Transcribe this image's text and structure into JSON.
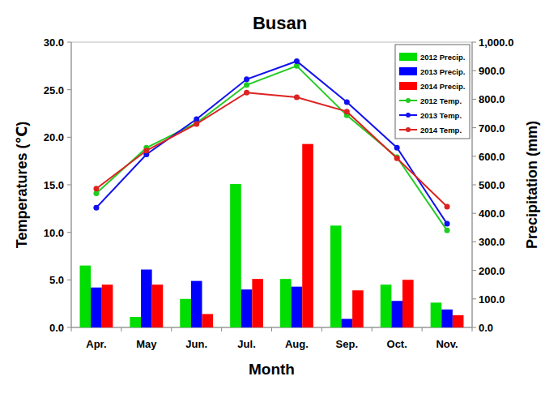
{
  "chart_data": {
    "type": "bar",
    "title": "Busan",
    "x_label": "Month",
    "y_label": "Temperatures (℃)",
    "y2_label": "Precipitation (mm)",
    "categories": [
      "Apr.",
      "May",
      "Jun.",
      "Jul.",
      "Aug.",
      "Sep.",
      "Oct.",
      "Nov."
    ],
    "series": [
      {
        "name": "2012 Precip.",
        "type": "bar",
        "axis": "y2",
        "color": "#00dd00",
        "values": [
          217,
          37,
          100,
          503,
          170,
          357,
          150,
          87
        ]
      },
      {
        "name": "2013 Precip.",
        "type": "bar",
        "axis": "y2",
        "color": "#0000ff",
        "values": [
          140,
          203,
          163,
          133,
          143,
          30,
          93,
          63
        ]
      },
      {
        "name": "2014 Precip.",
        "type": "bar",
        "axis": "y2",
        "color": "#ff0000",
        "values": [
          150,
          150,
          47,
          170,
          643,
          130,
          167,
          43
        ]
      },
      {
        "name": "2012 Temp.",
        "type": "line",
        "marker": "circle",
        "color": "#22cc22",
        "values": [
          14.1,
          18.9,
          21.5,
          25.5,
          27.5,
          22.3,
          17.9,
          10.2
        ]
      },
      {
        "name": "2013 Temp.",
        "type": "line",
        "marker": "circle",
        "color": "#1111ee",
        "values": [
          12.6,
          18.2,
          21.9,
          26.1,
          28.0,
          23.7,
          18.9,
          10.9
        ]
      },
      {
        "name": "2014 Temp.",
        "type": "line",
        "marker": "circle",
        "color": "#dd2222",
        "values": [
          14.6,
          18.6,
          21.4,
          24.7,
          24.2,
          22.7,
          17.8,
          12.7
        ]
      }
    ],
    "ylim": [
      0,
      30
    ],
    "yticks": [
      {
        "value": 0,
        "label": "0.0"
      },
      {
        "value": 5,
        "label": "5.0"
      },
      {
        "value": 10,
        "label": "10.0"
      },
      {
        "value": 15,
        "label": "15.0"
      },
      {
        "value": 20,
        "label": "20.0"
      },
      {
        "value": 25,
        "label": "25.0"
      },
      {
        "value": 30,
        "label": "30.0"
      }
    ],
    "y2lim": [
      0,
      1000
    ],
    "y2ticks": [
      {
        "value": 0,
        "label": "0.0"
      },
      {
        "value": 100,
        "label": "100.0"
      },
      {
        "value": 200,
        "label": "200.0"
      },
      {
        "value": 300,
        "label": "300.0"
      },
      {
        "value": 400,
        "label": "400.0"
      },
      {
        "value": 500,
        "label": "500.0"
      },
      {
        "value": 600,
        "label": "600.0"
      },
      {
        "value": 700,
        "label": "700.0"
      },
      {
        "value": 800,
        "label": "800.0"
      },
      {
        "value": 900,
        "label": "900.0"
      },
      {
        "value": 1000,
        "label": "1,000.0"
      }
    ],
    "grid": false,
    "legend": "top-right"
  }
}
